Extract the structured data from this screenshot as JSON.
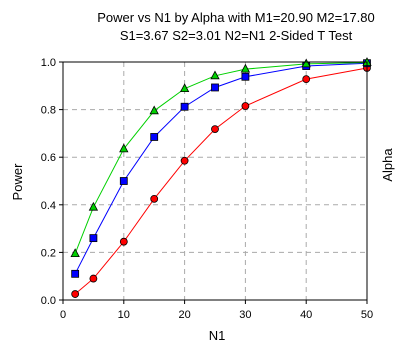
{
  "chart_data": {
    "type": "line",
    "title_line1": "Power vs N1 by Alpha with M1=20.90 M2=17.80",
    "title_line2": "S1=3.67 S2=3.01 N2=N1 2-Sided T Test",
    "xlabel": "N1",
    "ylabel": "Power",
    "legend_title": "Alpha",
    "xlim": [
      0,
      50
    ],
    "ylim": [
      0,
      1
    ],
    "xticks": [
      0,
      10,
      20,
      30,
      40,
      50
    ],
    "yticks": [
      "0.0",
      "0.2",
      "0.4",
      "0.6",
      "0.8",
      "1.0"
    ],
    "grid": true,
    "x": [
      2,
      5,
      10,
      15,
      20,
      25,
      30,
      40,
      50
    ],
    "series": [
      {
        "color": "#ff0000",
        "marker": "circle",
        "values": [
          0.025,
          0.09,
          0.245,
          0.425,
          0.585,
          0.718,
          0.815,
          0.928,
          0.975
        ]
      },
      {
        "color": "#0000ff",
        "marker": "square",
        "values": [
          0.11,
          0.26,
          0.5,
          0.685,
          0.812,
          0.893,
          0.938,
          0.983,
          0.995
        ]
      },
      {
        "color": "#00d000",
        "marker": "triangle",
        "values": [
          0.195,
          0.39,
          0.635,
          0.795,
          0.888,
          0.942,
          0.97,
          0.992,
          0.998
        ]
      }
    ]
  }
}
